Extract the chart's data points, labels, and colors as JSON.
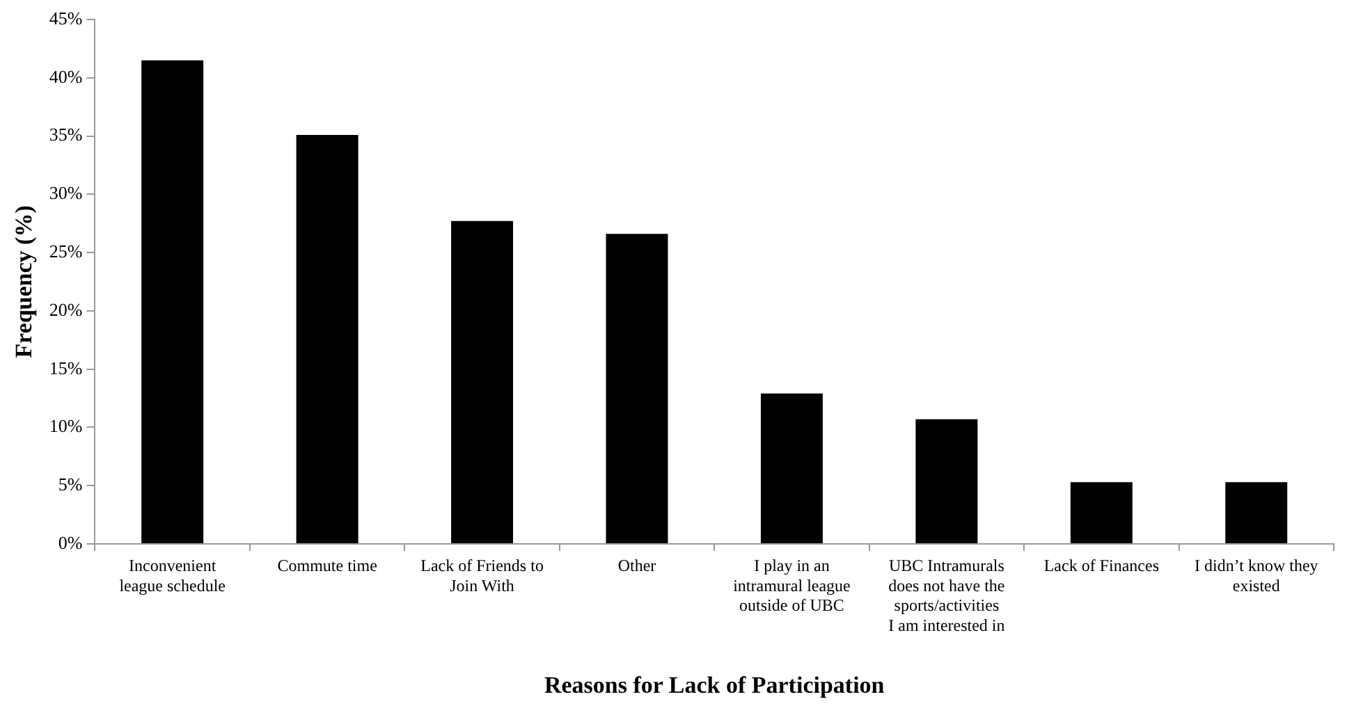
{
  "chart_data": {
    "type": "bar",
    "xlabel": "Reasons for Lack of Participation",
    "ylabel": "Frequency (%)",
    "categories": [
      "Inconvenient league schedule",
      "Commute time",
      "Lack of Friends to Join With",
      "Other",
      "I play in an intramural league outside of UBC",
      "UBC Intramurals does not have the sports/activities I am interested in",
      "Lack of Finances",
      "I didn’t know they existed"
    ],
    "values": [
      41.5,
      35.1,
      27.7,
      26.6,
      12.9,
      10.7,
      5.3,
      5.3
    ],
    "color": "#000000",
    "ylim": [
      0,
      45
    ],
    "yticks": [
      {
        "value": 0,
        "label": "0%"
      },
      {
        "value": 5,
        "label": "5%"
      },
      {
        "value": 10,
        "label": "10%"
      },
      {
        "value": 15,
        "label": "15%"
      },
      {
        "value": 20,
        "label": "20%"
      },
      {
        "value": 25,
        "label": "25%"
      },
      {
        "value": 30,
        "label": "30%"
      },
      {
        "value": 35,
        "label": "35%"
      },
      {
        "value": 40,
        "label": "40%"
      },
      {
        "value": 45,
        "label": "45%"
      }
    ],
    "grid": false,
    "legend": false
  }
}
